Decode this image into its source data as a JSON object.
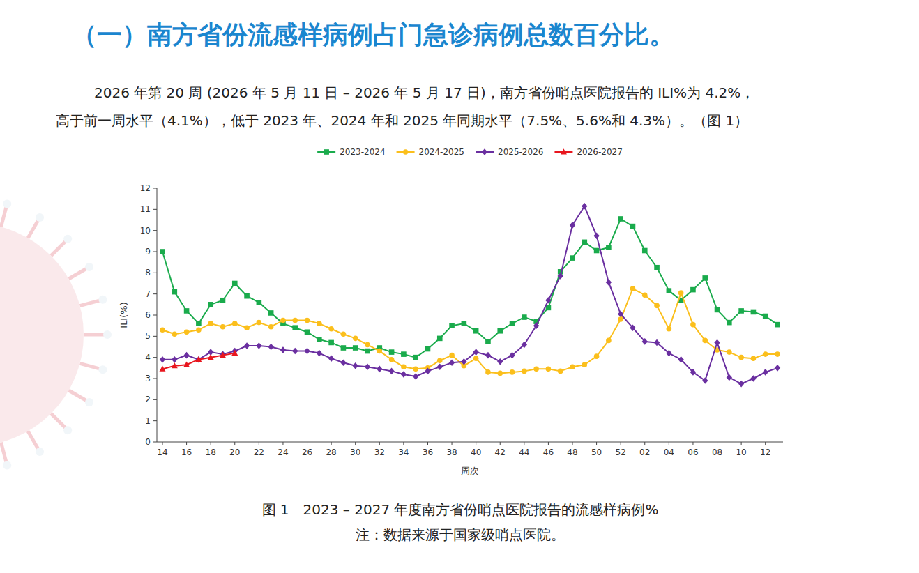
{
  "page": {
    "heading": "（一）南方省份流感样病例占门急诊病例总数百分比。",
    "paragraph": [
      "2026 年第 20 周 (2026 年 5 月 11 日 – 2026 年 5 月 17 日)，南方省份哨点医院报告的 ILI%为 4.2%，",
      "高于前一周水平（4.1%），低于 2023 年、2024 年和 2025 年同期水平（7.5%、5.6%和 4.3%）。（图 1）"
    ],
    "caption": "图 1　2023 – 2027 年度南方省份哨点医院报告的流感样病例%",
    "note": "注：数据来源于国家级哨点医院。"
  },
  "chart_data": {
    "type": "line",
    "x_label": "周次",
    "y_label": "ILI(%)",
    "categories": [
      "14",
      null,
      "16",
      null,
      "18",
      null,
      "20",
      null,
      "22",
      null,
      "24",
      null,
      "26",
      null,
      "28",
      null,
      "30",
      null,
      "32",
      null,
      "34",
      null,
      "36",
      null,
      "38",
      null,
      "40",
      null,
      "42",
      null,
      "44",
      null,
      "46",
      null,
      "48",
      null,
      "50",
      null,
      "52",
      null,
      "02",
      null,
      "04",
      null,
      "06",
      null,
      "08",
      null,
      "10",
      null,
      "12",
      null
    ],
    "ylim": [
      0,
      12
    ],
    "yticks": [
      0,
      1,
      2,
      3,
      4,
      5,
      6,
      7,
      8,
      9,
      10,
      11,
      12
    ],
    "grid": false,
    "legend": "top",
    "series": [
      {
        "name": "2023-2024",
        "color": "#1aab4c",
        "marker": "square",
        "values": [
          9.0,
          7.1,
          6.2,
          5.6,
          6.5,
          6.7,
          7.5,
          6.9,
          6.6,
          6.1,
          5.6,
          5.4,
          5.2,
          4.85,
          4.7,
          4.45,
          4.45,
          4.3,
          4.45,
          4.25,
          4.15,
          4.0,
          4.4,
          4.9,
          5.5,
          5.6,
          5.25,
          4.75,
          5.25,
          5.6,
          5.9,
          5.7,
          6.35,
          8.05,
          8.7,
          9.45,
          9.05,
          9.2,
          10.55,
          10.2,
          9.05,
          8.25,
          7.15,
          6.7,
          7.2,
          7.75,
          6.25,
          5.65,
          6.2,
          6.15,
          5.95,
          5.55
        ]
      },
      {
        "name": "2024-2025",
        "color": "#fbbf1c",
        "marker": "circle",
        "values": [
          5.3,
          5.1,
          5.2,
          5.3,
          5.6,
          5.45,
          5.6,
          5.4,
          5.65,
          5.45,
          5.75,
          5.75,
          5.75,
          5.6,
          5.35,
          5.1,
          4.9,
          4.6,
          4.3,
          3.9,
          3.55,
          3.45,
          3.5,
          3.85,
          4.1,
          3.6,
          3.95,
          3.3,
          3.25,
          3.3,
          3.35,
          3.45,
          3.45,
          3.35,
          3.55,
          3.65,
          4.05,
          4.8,
          5.8,
          7.25,
          6.95,
          6.45,
          5.35,
          7.05,
          5.55,
          4.8,
          4.35,
          4.25,
          4.0,
          3.95,
          4.15,
          4.15
        ]
      },
      {
        "name": "2025-2026",
        "color": "#6a2fa0",
        "marker": "diamond",
        "values": [
          3.9,
          3.9,
          4.1,
          3.9,
          4.25,
          4.15,
          4.3,
          4.55,
          4.55,
          4.5,
          4.35,
          4.3,
          4.3,
          4.2,
          3.95,
          3.75,
          3.6,
          3.55,
          3.45,
          3.35,
          3.2,
          3.1,
          3.35,
          3.55,
          3.75,
          3.8,
          4.25,
          4.1,
          3.8,
          4.1,
          4.6,
          5.5,
          6.7,
          7.85,
          10.25,
          11.15,
          9.75,
          7.55,
          6.05,
          5.4,
          4.75,
          4.7,
          4.2,
          3.9,
          3.3,
          2.9,
          4.7,
          3.05,
          2.75,
          3.0,
          3.3,
          3.5
        ]
      },
      {
        "name": "2026-2027",
        "color": "#e8161e",
        "marker": "triangle",
        "values": [
          3.45,
          3.6,
          3.65,
          3.9,
          4.0,
          4.1,
          4.2,
          null,
          null,
          null,
          null,
          null,
          null,
          null,
          null,
          null,
          null,
          null,
          null,
          null,
          null,
          null,
          null,
          null,
          null,
          null,
          null,
          null,
          null,
          null,
          null,
          null,
          null,
          null,
          null,
          null,
          null,
          null,
          null,
          null,
          null,
          null,
          null,
          null,
          null,
          null,
          null,
          null,
          null,
          null,
          null,
          null
        ]
      }
    ]
  }
}
